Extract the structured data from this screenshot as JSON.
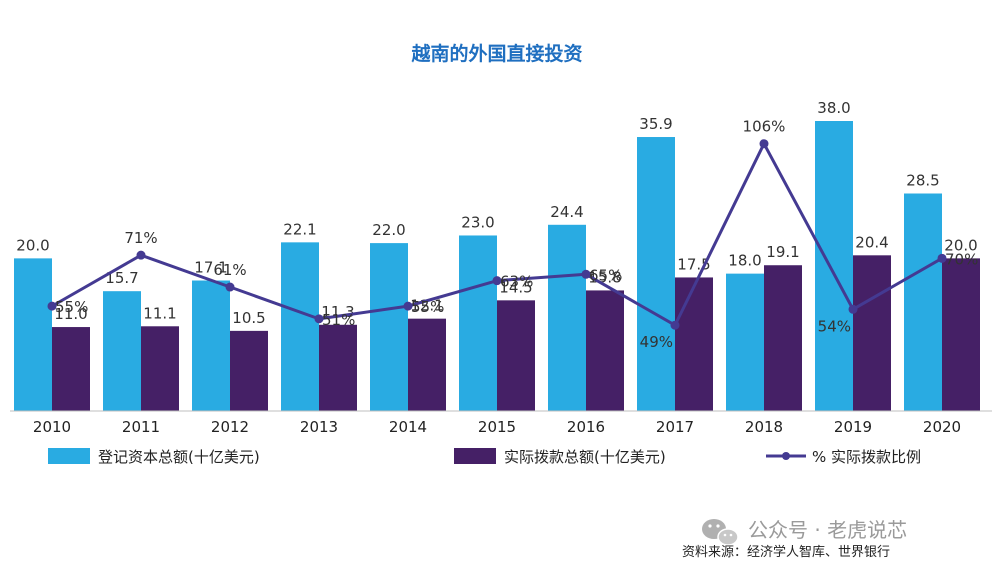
{
  "chart_data": {
    "type": "bar",
    "title": "越南的外国直接投资",
    "categories": [
      "2010",
      "2011",
      "2012",
      "2013",
      "2014",
      "2015",
      "2016",
      "2017",
      "2018",
      "2019",
      "2020"
    ],
    "series": [
      {
        "name": "登记资本总额(十亿美元)",
        "kind": "bar",
        "color": "#29abe2",
        "values": [
          20.0,
          15.7,
          17.1,
          22.1,
          22.0,
          23.0,
          24.4,
          35.9,
          18.0,
          38.0,
          28.5
        ],
        "labels": [
          "20.0",
          "15.7",
          "17.1",
          "22.1",
          "22.0",
          "23.0",
          "24.4",
          "35.9",
          "18.0",
          "38.0",
          "28.5"
        ]
      },
      {
        "name": "实际拨款总额(十亿美元)",
        "kind": "bar",
        "color": "#452066",
        "values": [
          11.0,
          11.1,
          10.5,
          11.3,
          12.1,
          14.5,
          15.8,
          17.5,
          19.1,
          20.4,
          20.0
        ],
        "labels": [
          "11.0",
          "11.1",
          "10.5",
          "11.3",
          "12.1",
          "14.5",
          "15.8",
          "17.5",
          "19.1",
          "20.4",
          "20.0"
        ]
      },
      {
        "name": "% 实际拨款比例",
        "kind": "line",
        "color": "#443a92",
        "values": [
          55,
          71,
          61,
          51,
          55,
          63,
          65,
          49,
          106,
          54,
          70
        ],
        "labels": [
          "55%",
          "71%",
          "61%",
          "51%",
          "55%",
          "63%",
          "65%",
          "49%",
          "106%",
          "54%",
          "70%"
        ]
      }
    ],
    "bar_ylim": [
      0,
      40
    ],
    "line_ylim": [
      0,
      130
    ],
    "grid": false,
    "legend_position": "bottom"
  },
  "source_text": "资料来源：经济学人智库、世界银行",
  "watermark_text": "公众号 · 老虎说芯",
  "watermark_icon": "wechat-icon"
}
